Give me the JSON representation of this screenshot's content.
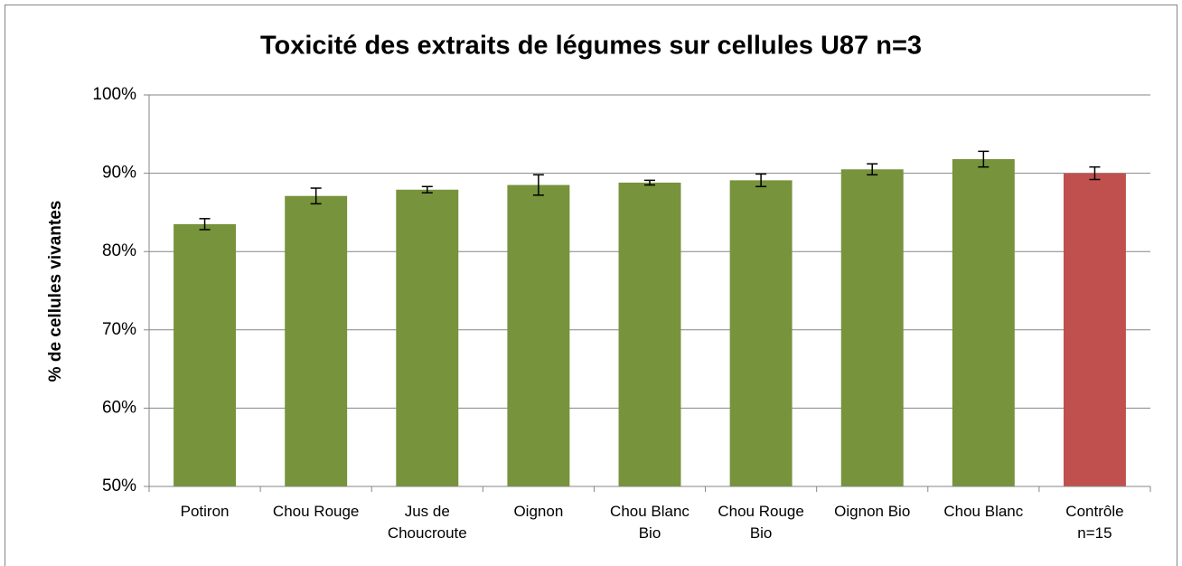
{
  "chart_data": {
    "type": "bar",
    "title": "Toxicité des extraits de légumes sur cellules U87 n=3",
    "y_label": "% de cellules vivantes",
    "categories": [
      "Potiron",
      "Chou Rouge",
      "Jus de\nChoucroute",
      "Oignon",
      "Chou Blanc\nBio",
      "Chou Rouge\nBio",
      "Oignon Bio",
      "Chou Blanc",
      "Contrôle\nn=15"
    ],
    "values": [
      83.5,
      87.1,
      87.9,
      88.5,
      88.8,
      89.1,
      90.5,
      91.8,
      90.0
    ],
    "errors": [
      0.7,
      1.0,
      0.4,
      1.3,
      0.3,
      0.8,
      0.7,
      1.0,
      0.8
    ],
    "colors": [
      "#77933c",
      "#77933c",
      "#77933c",
      "#77933c",
      "#77933c",
      "#77933c",
      "#77933c",
      "#77933c",
      "#c0504d"
    ],
    "ylim": [
      50,
      100
    ],
    "yticks": [
      {
        "value": 50,
        "label": "50%"
      },
      {
        "value": 60,
        "label": "60%"
      },
      {
        "value": 70,
        "label": "70%"
      },
      {
        "value": 80,
        "label": "80%"
      },
      {
        "value": 90,
        "label": "90%"
      },
      {
        "value": 100,
        "label": "100%"
      }
    ],
    "grid": true
  }
}
